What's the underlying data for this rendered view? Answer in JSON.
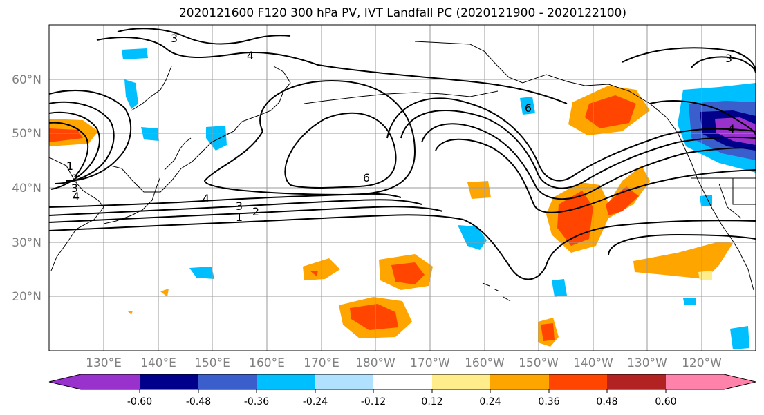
{
  "title": "2020121600 F120 300 hPa PV, IVT Landfall PC (2020121900 - 2020122100)",
  "map": {
    "lat_ticks": [
      "60°N",
      "50°N",
      "40°N",
      "30°N",
      "20°N"
    ],
    "lon_ticks": [
      "130°E",
      "140°E",
      "150°E",
      "160°E",
      "170°E",
      "180°W",
      "170°W",
      "160°W",
      "150°W",
      "140°W",
      "130°W",
      "120°W"
    ],
    "contour_levels": [
      "1",
      "2",
      "3",
      "4",
      "6"
    ],
    "gridlines": true
  },
  "colorbar": {
    "tick_labels": [
      "-0.60",
      "-0.48",
      "-0.36",
      "-0.24",
      "-0.12",
      "0.12",
      "0.24",
      "0.36",
      "0.48",
      "0.60"
    ],
    "colors": [
      "#9932cc",
      "#00008b",
      "#3a5fcd",
      "#00bfff",
      "#b0e2ff",
      "#ffffff",
      "#ffec8b",
      "#ffa500",
      "#ff4500",
      "#b22222",
      "#ff82ab"
    ],
    "extend": "both"
  }
}
